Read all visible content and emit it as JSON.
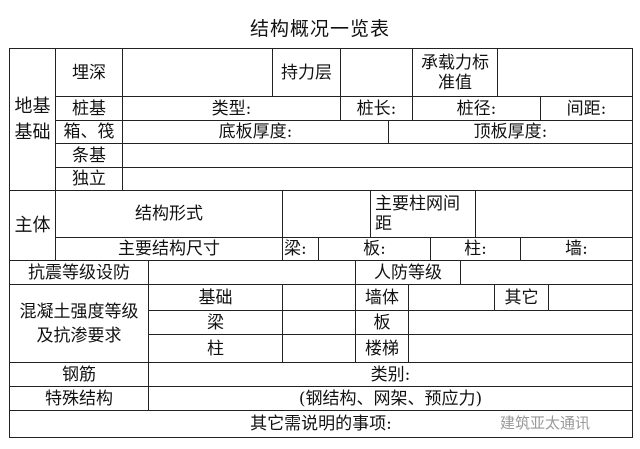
{
  "title": "结构概况一览表",
  "foundation": {
    "group_label": "地基基础",
    "burial_depth": "埋深",
    "bearing_layer": "持力层",
    "bearing_capacity": "承载力标准值",
    "pile": "桩基",
    "pile_type": "类型:",
    "pile_length": "桩长:",
    "pile_diameter": "桩径:",
    "pile_spacing": "间距:",
    "box_raft": "箱、筏",
    "bottom_slab": "底板厚度:",
    "top_slab": "顶板厚度:",
    "strip": "条基",
    "isolated": "独立"
  },
  "main": {
    "group_label": "主体",
    "structure_form": "结构形式",
    "column_grid": "主要柱网间距",
    "main_dimensions": "主要结构尺寸",
    "beam": "梁:",
    "slab": "板:",
    "column": "柱:",
    "wall": "墙:"
  },
  "seismic": "抗震等级设防",
  "civil_defense": "人防等级",
  "concrete": {
    "label": "混凝土强度等级及抗渗要求",
    "foundation": "基础",
    "wall": "墙体",
    "other": "其它",
    "beam": "梁",
    "slab": "板",
    "column": "柱",
    "stair": "楼梯"
  },
  "rebar": "钢筋",
  "rebar_category": "类别:",
  "special": "特殊结构",
  "special_value": "(钢结构、网架、预应力)",
  "notes": "其它需说明的事项:",
  "watermark": "建筑亚太通讯"
}
